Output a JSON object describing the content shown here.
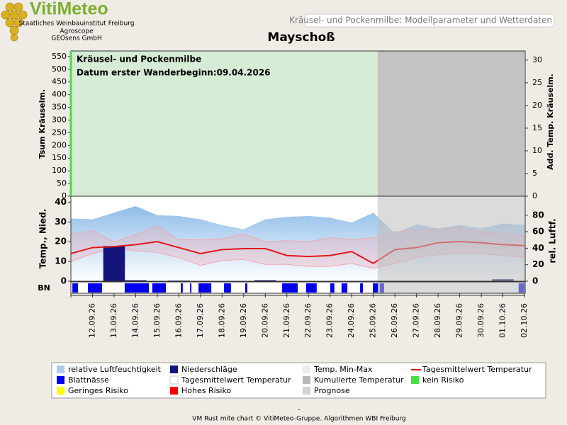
{
  "header": {
    "logo": "VitiMeteo",
    "org": [
      "Staatliches Weinbauinstitut Freiburg",
      "Agroscope",
      "GEOsens GmbH"
    ],
    "page_title": "Kräusel- und Pockenmilbe: Modellparameter und Wetterdaten"
  },
  "chart_data": [
    {
      "type": "model",
      "title": "Mayschoß",
      "y_label": "Tsum Kräuselm.",
      "y2_label": "Add. Temp. Kräuselm.",
      "annotations": [
        "Kräusel- und Pockenmilbe",
        "Datum  erster Wanderbeginn:09.04.2026"
      ],
      "xlim": [
        0,
        21
      ],
      "ylim": [
        0,
        572
      ],
      "yticks": [
        0,
        50,
        100,
        150,
        200,
        250,
        300,
        350,
        400,
        450,
        500,
        550
      ],
      "y2lim": [
        0,
        32
      ],
      "y2ticks": [
        0,
        5,
        10,
        15,
        20,
        25,
        30
      ],
      "regions": [
        {
          "color": "#d2ead2",
          "from": 0,
          "to": 14.2
        },
        {
          "color": "#bdbdbd",
          "from": 14.2,
          "to": 21
        }
      ]
    },
    {
      "type": "weather",
      "y_label": "Temp., Nied.",
      "y2_label": "rel. Luftf.",
      "bn_label": "BN",
      "xlim": [
        0,
        21
      ],
      "categories": [
        null,
        "12.09.26",
        "13.09.26",
        "14.09.26",
        "15.09.26",
        "16.09.26",
        "17.09.26",
        "18.09.26",
        "19.09.26",
        "20.09.26",
        "21.09.26",
        "22.09.26",
        "23.09.26",
        "24.09.26",
        "25.09.26",
        "26.09.26",
        "27.09.26",
        "28.09.26",
        "29.09.26",
        "30.09.26",
        "01.10.26",
        "02.10.26"
      ],
      "ylim": [
        0,
        43
      ],
      "yticks": [
        0,
        10,
        20,
        30,
        40
      ],
      "y2lim": [
        0,
        103
      ],
      "y2ticks": [
        0,
        20,
        40,
        60,
        80
      ],
      "prognose_from": 14.2,
      "prognose_color": "#bdbdbd",
      "series": [
        {
          "name": "relative Luftfeuchtigkeit",
          "kind": "area",
          "axis": "y2",
          "color": "#a9cdf0",
          "values": [
            76,
            75,
            83,
            91,
            80,
            79,
            75,
            68,
            63,
            75,
            78,
            79,
            77,
            71,
            83,
            58,
            69,
            64,
            68,
            64,
            70,
            68
          ]
        },
        {
          "name": "Temp. Min-Max",
          "kind": "band",
          "color": "#f0a8b4",
          "min": [
            10,
            14,
            16.5,
            15.5,
            14.5,
            12,
            8,
            10.5,
            11,
            8.5,
            8.5,
            7.5,
            7.5,
            9,
            6.5,
            9,
            12,
            13.5,
            14,
            14,
            13,
            12
          ],
          "max": [
            24,
            25.5,
            20,
            23.5,
            28,
            21,
            21,
            21.5,
            24,
            20,
            20.5,
            20,
            22,
            21,
            22,
            25,
            26,
            26.5,
            27,
            25,
            24,
            23
          ]
        },
        {
          "name": "Niederschläge",
          "kind": "bar",
          "color": "#14147a",
          "values": [
            0,
            0,
            17.8,
            0.5,
            0,
            0.3,
            0,
            0,
            0,
            0.5,
            0,
            0,
            0,
            0,
            0,
            0,
            0,
            0,
            0,
            0,
            1,
            0
          ]
        },
        {
          "name": "Tagesmittelwert Temperatur",
          "kind": "line",
          "color": "#e01818",
          "values": [
            14,
            17,
            17.5,
            18.5,
            20,
            17,
            14,
            16,
            16.5,
            16.5,
            13,
            12.5,
            13,
            15,
            9,
            16,
            17,
            19.5,
            20,
            19.5,
            18.5,
            18
          ]
        },
        {
          "name": "Blattnässe",
          "kind": "intervals",
          "color": "#0000ee",
          "intervals": [
            [
              0.07,
              0.33
            ],
            [
              0.79,
              1.44
            ],
            [
              2.49,
              3.61
            ],
            [
              3.77,
              4.4
            ],
            [
              5.09,
              5.18
            ],
            [
              5.51,
              5.58
            ],
            [
              5.91,
              6.5
            ],
            [
              7.09,
              7.41
            ],
            [
              8.07,
              8.17
            ],
            [
              9.78,
              10.5
            ],
            [
              10.89,
              11.38
            ],
            [
              12.01,
              12.2
            ],
            [
              12.53,
              12.8
            ],
            [
              13.39,
              13.52
            ],
            [
              13.98,
              14.24
            ],
            [
              14.3,
              14.5
            ],
            [
              20.73,
              21
            ]
          ]
        }
      ]
    }
  ],
  "legend": [
    {
      "label": "relative Luftfeuchtigkeit",
      "color": "#a9cdf0"
    },
    {
      "label": "Niederschläge",
      "color": "#14147a"
    },
    {
      "label": "Temp. Min-Max",
      "color": "#eeeeee"
    },
    {
      "label": "Tagesmittelwert Temperatur",
      "color": "#e01818",
      "line": true
    },
    {
      "label": "Blattnässe",
      "color": "#0000ee"
    },
    {
      "label": "Tagesmittelwert Temperatur",
      "color": "#ffffff"
    },
    {
      "label": "Kumulierte Temperatur",
      "color": "#b8b8b8"
    },
    {
      "label": "kein Risiko",
      "color": "#44e044"
    },
    {
      "label": "Geringes Risiko",
      "color": "#ffff00"
    },
    {
      "label": "Hohes Risiko",
      "color": "#ff0000"
    },
    {
      "label": "Prognose",
      "color": "#d4d4d4"
    }
  ],
  "footer": [
    "-",
    "VM Rust mite chart © VitiMeteo-Gruppe. Algorithmen WBI Freiburg"
  ]
}
